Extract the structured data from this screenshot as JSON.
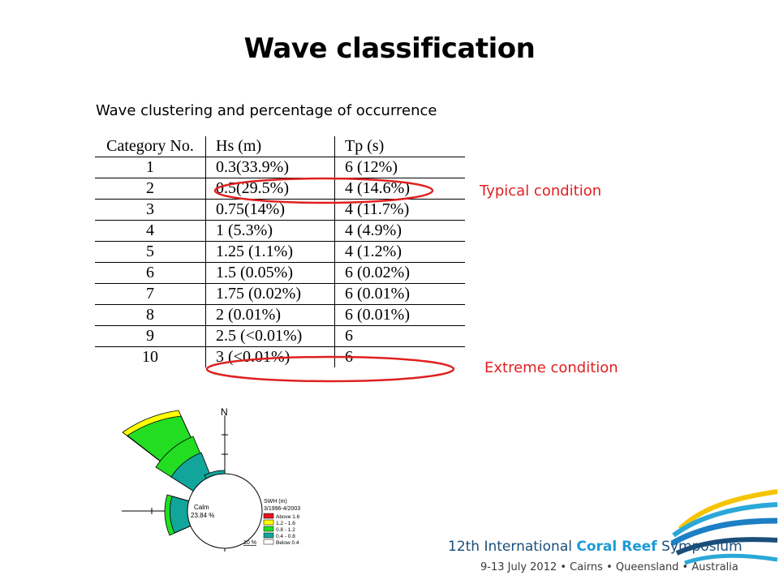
{
  "slide": {
    "title": "Wave classification",
    "subtitle": "Wave clustering and percentage of occurrence"
  },
  "table": {
    "headers": [
      "Category No.",
      "Hs (m)",
      "Tp (s)"
    ],
    "rows": [
      [
        "1",
        "0.3(33.9%)",
        "6 (12%)"
      ],
      [
        "2",
        "0.5(29.5%)",
        "4 (14.6%)"
      ],
      [
        "3",
        "0.75(14%)",
        "4 (11.7%)"
      ],
      [
        "4",
        "1 (5.3%)",
        "4 (4.9%)"
      ],
      [
        "5",
        "1.25 (1.1%)",
        "4 (1.2%)"
      ],
      [
        "6",
        "1.5 (0.05%)",
        "6 (0.02%)"
      ],
      [
        "7",
        "1.75 (0.02%)",
        "6 (0.01%)"
      ],
      [
        "8",
        "2 (0.01%)",
        "6 (0.01%)"
      ],
      [
        "9",
        "2.5 (<0.01%)",
        "6"
      ],
      [
        "10",
        "3 (<0.01%)",
        "6"
      ]
    ]
  },
  "annotations": {
    "typical": "Typical condition",
    "extreme": "Extreme condition",
    "color": "#e02020"
  },
  "wave_rose": {
    "north_label": "N",
    "calm_label": "Calm",
    "calm_value": "23.84 %",
    "scale_label": "10 %",
    "legend_title": "SWH (m)",
    "legend_period": "3/1996-4/2003",
    "legend": [
      {
        "label": "Above 1.6",
        "color": "#e8141c"
      },
      {
        "label": "1.2 - 1.6",
        "color": "#ffff00"
      },
      {
        "label": "0.8 - 1.2",
        "color": "#22dd22"
      },
      {
        "label": "0.4 - 0.8",
        "color": "#12a59c"
      },
      {
        "label": "Below 0.4",
        "color": "#ffffff"
      }
    ]
  },
  "logo": {
    "line1_a": "12th International ",
    "line1_b": "Coral Reef",
    "line1_c": " Symposium",
    "line2": "9-13 July 2012 • Cairns • Queensland • Australia"
  }
}
